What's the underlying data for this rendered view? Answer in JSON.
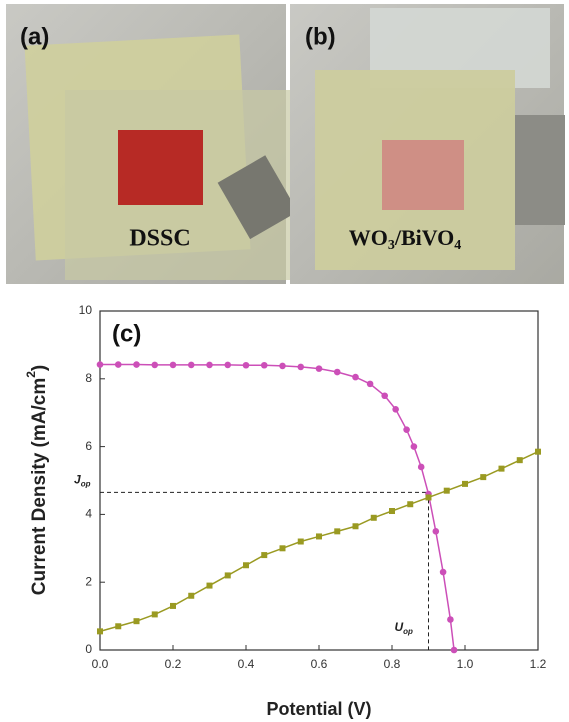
{
  "panels": {
    "a": {
      "tag": "(a)",
      "label": "DSSC"
    },
    "b": {
      "tag": "(b)",
      "label_parts": [
        "WO",
        "3",
        "/BiVO",
        "4"
      ]
    }
  },
  "chart_data": {
    "type": "line",
    "panel_tag": "(c)",
    "xlabel": "Potential (V)",
    "ylabel_parts": [
      "Current Density (mA/cm",
      "2",
      ")"
    ],
    "xlim": [
      0,
      1.2
    ],
    "xticks": [
      {
        "value": 0,
        "label": "0.0"
      },
      {
        "value": 0.2,
        "label": "0.2"
      },
      {
        "value": 0.4,
        "label": "0.4"
      },
      {
        "value": 0.6,
        "label": "0.6"
      },
      {
        "value": 0.8,
        "label": "0.8"
      },
      {
        "value": 1.0,
        "label": "1.0"
      },
      {
        "value": 1.2,
        "label": "1.2"
      }
    ],
    "ylim": [
      0,
      10
    ],
    "yticks": [
      0,
      2,
      4,
      6,
      8,
      10
    ],
    "series": [
      {
        "color": "#cc4fb8",
        "marker": "circle",
        "x": [
          0,
          0.05,
          0.1,
          0.15,
          0.2,
          0.25,
          0.3,
          0.35,
          0.4,
          0.45,
          0.5,
          0.55,
          0.6,
          0.65,
          0.7,
          0.74,
          0.78,
          0.81,
          0.84,
          0.86,
          0.88,
          0.9,
          0.92,
          0.94,
          0.96,
          0.97
        ],
        "values": [
          8.42,
          8.42,
          8.42,
          8.41,
          8.41,
          8.41,
          8.41,
          8.41,
          8.4,
          8.4,
          8.38,
          8.35,
          8.3,
          8.2,
          8.05,
          7.85,
          7.5,
          7.1,
          6.5,
          6.0,
          5.4,
          4.6,
          3.5,
          2.3,
          0.9,
          0
        ]
      },
      {
        "color": "#9a9a22",
        "marker": "square",
        "x": [
          0,
          0.05,
          0.1,
          0.15,
          0.2,
          0.25,
          0.3,
          0.35,
          0.4,
          0.45,
          0.5,
          0.55,
          0.6,
          0.65,
          0.7,
          0.75,
          0.8,
          0.85,
          0.9,
          0.95,
          1.0,
          1.05,
          1.1,
          1.15,
          1.2
        ],
        "values": [
          0.55,
          0.7,
          0.85,
          1.05,
          1.3,
          1.6,
          1.9,
          2.2,
          2.5,
          2.8,
          3.0,
          3.2,
          3.35,
          3.5,
          3.65,
          3.9,
          4.1,
          4.3,
          4.5,
          4.7,
          4.9,
          5.1,
          5.35,
          5.6,
          5.85
        ]
      }
    ],
    "operating_point": {
      "x": 0.9,
      "y": 4.65,
      "x_label_parts": [
        "U",
        "op"
      ],
      "y_label_parts": [
        "J",
        "op"
      ]
    }
  }
}
